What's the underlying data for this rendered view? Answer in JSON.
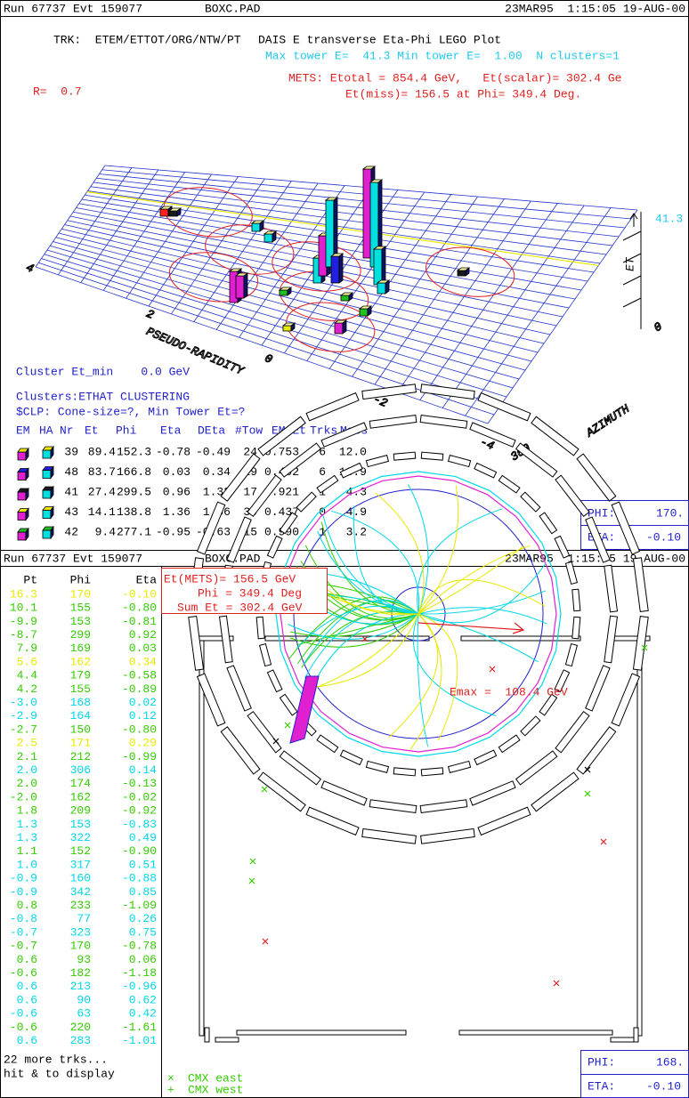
{
  "top": {
    "header": {
      "run": "Run 67737 Evt 159077",
      "file": "BOXC.PAD",
      "time": "23MAR95  1:15:05 19-AUG-00"
    },
    "trk": "TRK:  ETEM/ETTOT/ORG/NTW/PT",
    "title": "DAIS E transverse Eta-Phi LEGO Plot",
    "tower_line": "Max tower E=  41.3 Min tower E=  1.00  N clusters=1",
    "r": "R=  0.7",
    "mets": [
      "METS: Etotal = 854.4 GeV,   Et(scalar)= 302.4 Ge",
      "Et(miss)= 156.5 at Phi= 349.4 Deg."
    ],
    "axes": {
      "et_max": "41.3",
      "et": "ET",
      "rapidity": "PSEUDO-RAPIDITY",
      "azimuth": "AZIMUTH",
      "eta_ticks": [
        "4",
        "2",
        "0",
        "-2",
        "-4"
      ],
      "phi_ticks": [
        "0",
        "360"
      ]
    },
    "cluster_et_min": "Cluster Et_min    0.0 GeV",
    "clustering": "Clusters:ETHAT CLUSTERING",
    "clp": "$CLP: Cone-size=?, Min Tower Et=?",
    "table": {
      "header": [
        "EM",
        "HA",
        "Nr",
        "Et",
        "Phi",
        "Eta",
        "DEta",
        "#Tow",
        "EM/Et",
        "Trks",
        "Mass"
      ],
      "rows": [
        [
          "39",
          "89.4",
          "152.3",
          "-0.78",
          "-0.49",
          "24",
          "0.753",
          "6",
          "12.0"
        ],
        [
          "48",
          "83.7",
          "166.8",
          "0.03",
          "0.34",
          "19",
          "0.402",
          "6",
          "13.9"
        ],
        [
          "41",
          "27.4",
          "299.5",
          "0.96",
          "1.32",
          "17",
          "0.921",
          "1",
          "4.3"
        ],
        [
          "43",
          "14.1",
          "138.8",
          "1.36",
          "1.66",
          "30",
          "0.437",
          "0",
          "4.9"
        ],
        [
          "42",
          "9.4",
          "277.1",
          "-0.95",
          "-0.63",
          "15",
          "0.990",
          "1",
          "3.2"
        ]
      ]
    },
    "cursor": {
      "phi": [
        "PHI:",
        "170."
      ],
      "eta": [
        "ETA:",
        "-0.10"
      ]
    }
  },
  "bottom": {
    "header": {
      "run": "Run 67737 Evt 159077",
      "file": "BOXC.PAD",
      "time": "23MAR95  1:15:05 19-AUG-00"
    },
    "track_list": {
      "header": [
        "Pt",
        "Phi",
        "Eta"
      ],
      "rows": [
        {
          "cells": [
            "16.3",
            "170",
            "-0.10"
          ],
          "color": "#e8e800"
        },
        {
          "cells": [
            "10.1",
            "155",
            "-0.80"
          ],
          "color": "#33cc00"
        },
        {
          "cells": [
            "-9.9",
            "153",
            "-0.81"
          ],
          "color": "#33cc00"
        },
        {
          "cells": [
            "-8.7",
            "299",
            "0.92"
          ],
          "color": "#33cc00"
        },
        {
          "cells": [
            "7.9",
            "169",
            "0.03"
          ],
          "color": "#33cc00"
        },
        {
          "cells": [
            "5.6",
            "162",
            "0.34"
          ],
          "color": "#e8e800"
        },
        {
          "cells": [
            "4.4",
            "179",
            "-0.58"
          ],
          "color": "#33cc00"
        },
        {
          "cells": [
            "4.2",
            "155",
            "-0.89"
          ],
          "color": "#33cc00"
        },
        {
          "cells": [
            "-3.0",
            "168",
            "0.02"
          ],
          "color": "#00d8e8"
        },
        {
          "cells": [
            "-2.9",
            "164",
            "0.12"
          ],
          "color": "#00d8e8"
        },
        {
          "cells": [
            "-2.7",
            "150",
            "-0.80"
          ],
          "color": "#33cc00"
        },
        {
          "cells": [
            "2.5",
            "171",
            "0.29"
          ],
          "color": "#e8e800"
        },
        {
          "cells": [
            "2.1",
            "212",
            "-0.99"
          ],
          "color": "#33cc00"
        },
        {
          "cells": [
            "2.0",
            "306",
            "0.14"
          ],
          "color": "#00d8e8"
        },
        {
          "cells": [
            "2.0",
            "174",
            "-0.13"
          ],
          "color": "#33cc00"
        },
        {
          "cells": [
            "-2.0",
            "162",
            "-0.02"
          ],
          "color": "#33cc00"
        },
        {
          "cells": [
            "1.8",
            "209",
            "-0.92"
          ],
          "color": "#33cc00"
        },
        {
          "cells": [
            "1.3",
            "153",
            "-0.83"
          ],
          "color": "#00d8e8"
        },
        {
          "cells": [
            "1.3",
            "322",
            "0.49"
          ],
          "color": "#00d8e8"
        },
        {
          "cells": [
            "1.1",
            "152",
            "-0.90"
          ],
          "color": "#33cc00"
        },
        {
          "cells": [
            "1.0",
            "317",
            "0.51"
          ],
          "color": "#00d8e8"
        },
        {
          "cells": [
            "-0.9",
            "160",
            "-0.88"
          ],
          "color": "#00d8e8"
        },
        {
          "cells": [
            "-0.9",
            "342",
            "0.85"
          ],
          "color": "#00d8e8"
        },
        {
          "cells": [
            "0.8",
            "233",
            "-1.09"
          ],
          "color": "#33cc00"
        },
        {
          "cells": [
            "-0.8",
            "77",
            "0.26"
          ],
          "color": "#00d8e8"
        },
        {
          "cells": [
            "-0.7",
            "323",
            "0.75"
          ],
          "color": "#00d8e8"
        },
        {
          "cells": [
            "-0.7",
            "170",
            "-0.78"
          ],
          "color": "#33cc00"
        },
        {
          "cells": [
            "0.6",
            "93",
            "0.06"
          ],
          "color": "#33cc00"
        },
        {
          "cells": [
            "-0.6",
            "182",
            "-1.18"
          ],
          "color": "#33cc00"
        },
        {
          "cells": [
            "0.6",
            "213",
            "-0.96"
          ],
          "color": "#00d8e8"
        },
        {
          "cells": [
            "0.6",
            "90",
            "0.62"
          ],
          "color": "#00d8e8"
        },
        {
          "cells": [
            "-0.6",
            "63",
            "0.42"
          ],
          "color": "#00d8e8"
        },
        {
          "cells": [
            "-0.6",
            "220",
            "-1.61"
          ],
          "color": "#33cc00"
        },
        {
          "cells": [
            "0.6",
            "283",
            "-1.01"
          ],
          "color": "#00d8e8"
        }
      ],
      "more": "22 more trks...",
      "hint": "hit & to display"
    },
    "met_box": [
      "Et(METS)= 156.5 GeV",
      "Phi = 349.4 Deg",
      "Sum Et = 302.4 GeV"
    ],
    "emax": "Emax =  108.4 GeV",
    "legend": [
      {
        "symbol": "×",
        "label": "CMX east"
      },
      {
        "symbol": "+",
        "label": "CMX west"
      }
    ],
    "cursor": {
      "phi": [
        "PHI:",
        "168."
      ],
      "eta": [
        "ETA:",
        "-0.10"
      ]
    }
  }
}
